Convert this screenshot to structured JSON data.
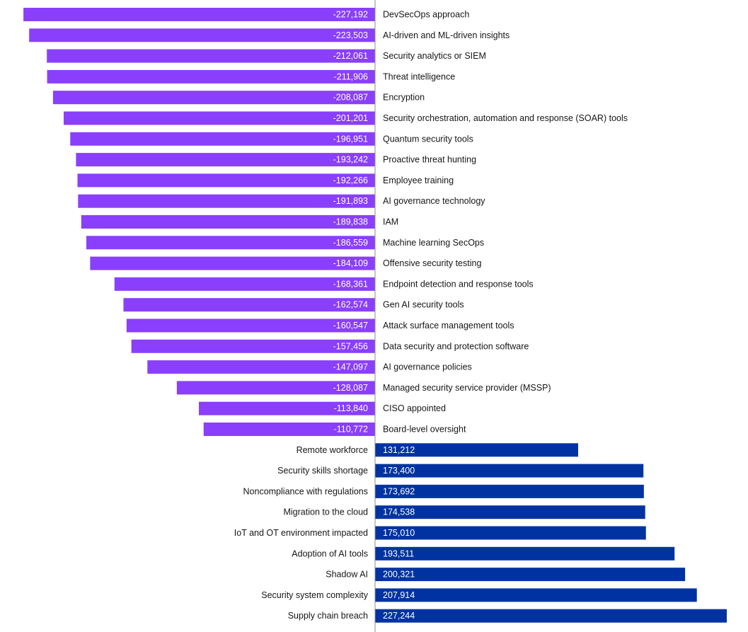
{
  "chart_data": {
    "type": "bar",
    "orientation": "horizontal",
    "categories": [
      "DevSecOps approach",
      "AI-driven and ML-driven insights",
      "Security analytics or SIEM",
      "Threat intelligence",
      "Encryption",
      "Security orchestration, automation and response (SOAR) tools",
      "Quantum security tools",
      "Proactive threat hunting",
      "Employee training",
      "AI governance technology",
      "IAM",
      "Machine learning SecOps",
      "Offensive security testing",
      "Endpoint detection and response tools",
      "Gen AI security tools",
      "Attack surface management tools",
      "Data security and protection software",
      "AI governance policies",
      "Managed security service provider (MSSP)",
      "CISO appointed",
      "Board-level oversight",
      "Remote workforce",
      "Security skills shortage",
      "Noncompliance with regulations",
      "Migration to the cloud",
      "IoT and OT environment impacted",
      "Adoption of AI tools",
      "Shadow AI",
      "Security system complexity",
      "Supply chain breach"
    ],
    "values": [
      -227192,
      -223503,
      -212061,
      -211906,
      -208087,
      -201201,
      -196951,
      -193242,
      -192266,
      -191893,
      -189838,
      -186559,
      -184109,
      -168361,
      -162574,
      -160547,
      -157456,
      -147097,
      -128087,
      -113840,
      -110772,
      131212,
      173400,
      173692,
      174538,
      175010,
      193511,
      200321,
      207914,
      227244
    ],
    "value_labels": [
      "-227,192",
      "-223,503",
      "-212,061",
      "-211,906",
      "-208,087",
      "-201,201",
      "-196,951",
      "-193,242",
      "-192,266",
      "-191,893",
      "-189,838",
      "-186,559",
      "-184,109",
      "-168,361",
      "-162,574",
      "-160,547",
      "-157,456",
      "-147,097",
      "-128,087",
      "-113,840",
      "-110,772",
      "131,212",
      "173,400",
      "173,692",
      "174,538",
      "175,010",
      "193,511",
      "200,321",
      "207,914",
      "227,244"
    ],
    "xlim": [
      -227244,
      227244
    ],
    "grid": false,
    "legend": "none",
    "colors": {
      "negative": "#8a3ffc",
      "positive": "#0033a1",
      "axis": "#8d8d8d",
      "label_text": "#161616",
      "value_text": "#ffffff"
    }
  }
}
